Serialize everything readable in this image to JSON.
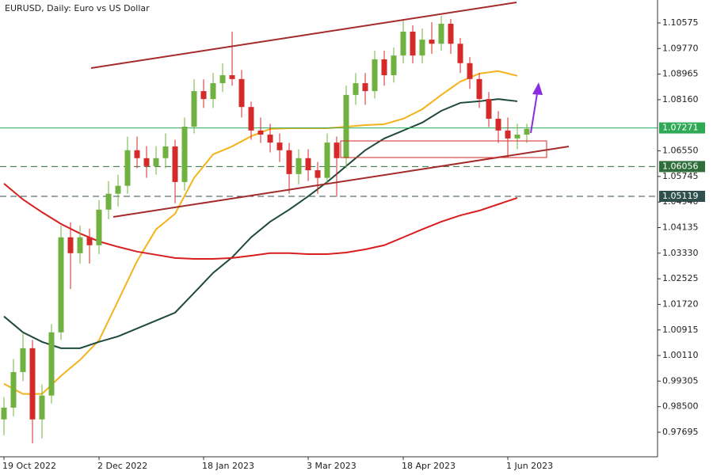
{
  "chart_data": {
    "type": "candlestick",
    "title": "EURUSD, Daily:  Euro vs US Dollar",
    "categories": [
      "19 Oct 2022",
      null,
      null,
      null,
      null,
      null,
      null,
      null,
      null,
      null,
      "2 Dec 2022",
      null,
      null,
      null,
      null,
      null,
      null,
      null,
      null,
      null,
      null,
      "18 Jan 2023",
      null,
      null,
      null,
      null,
      null,
      null,
      null,
      null,
      null,
      null,
      "3 Mar 2023",
      null,
      null,
      null,
      null,
      null,
      null,
      null,
      null,
      null,
      "18 Apr 2023",
      null,
      null,
      null,
      null,
      null,
      null,
      null,
      null,
      null,
      null,
      "1 Jun 2023",
      null,
      null
    ],
    "candles": [
      [
        0.981,
        0.988,
        0.976,
        0.9847
      ],
      [
        0.9847,
        1.0,
        0.982,
        0.9959
      ],
      [
        0.9959,
        1.008,
        0.993,
        1.0034
      ],
      [
        1.0034,
        1.006,
        0.9735,
        0.981
      ],
      [
        0.981,
        0.992,
        0.975,
        0.9885
      ],
      [
        0.9885,
        1.011,
        0.986,
        1.0084
      ],
      [
        1.0084,
        1.042,
        1.006,
        1.0383
      ],
      [
        1.0383,
        1.043,
        1.022,
        1.0333
      ],
      [
        1.0333,
        1.042,
        1.03,
        1.0383
      ],
      [
        1.0383,
        1.041,
        1.03,
        1.0358
      ],
      [
        1.0358,
        1.05,
        1.033,
        1.047
      ],
      [
        1.047,
        1.056,
        1.044,
        1.052
      ],
      [
        1.052,
        1.058,
        1.048,
        1.0545
      ],
      [
        1.0545,
        1.07,
        1.052,
        1.0657
      ],
      [
        1.0657,
        1.07,
        1.06,
        1.0632
      ],
      [
        1.0632,
        1.067,
        1.057,
        1.0607
      ],
      [
        1.0607,
        1.067,
        1.058,
        1.0632
      ],
      [
        1.0632,
        1.071,
        1.06,
        1.0669
      ],
      [
        1.0669,
        1.069,
        1.049,
        1.0557
      ],
      [
        1.0557,
        1.076,
        1.053,
        1.0731
      ],
      [
        1.0731,
        1.088,
        1.071,
        1.0843
      ],
      [
        1.0843,
        1.088,
        1.079,
        1.0818
      ],
      [
        1.0818,
        1.09,
        1.079,
        1.0868
      ],
      [
        1.0868,
        1.093,
        1.084,
        1.0893
      ],
      [
        1.0893,
        1.103,
        1.086,
        1.0881
      ],
      [
        1.0881,
        1.091,
        1.076,
        1.0793
      ],
      [
        1.0793,
        1.081,
        1.069,
        1.0719
      ],
      [
        1.0719,
        1.076,
        1.068,
        1.0706
      ],
      [
        1.0706,
        1.074,
        1.065,
        1.0681
      ],
      [
        1.0681,
        1.071,
        1.062,
        1.0657
      ],
      [
        1.0657,
        1.068,
        1.052,
        1.0582
      ],
      [
        1.0582,
        1.066,
        1.055,
        1.0632
      ],
      [
        1.0632,
        1.066,
        1.056,
        1.0594
      ],
      [
        1.0594,
        1.062,
        1.052,
        1.057
      ],
      [
        1.057,
        1.071,
        1.055,
        1.0681
      ],
      [
        1.0681,
        1.07,
        1.051,
        1.0632
      ],
      [
        1.0632,
        1.086,
        1.06,
        1.0831
      ],
      [
        1.0831,
        1.09,
        1.08,
        1.0868
      ],
      [
        1.0868,
        1.09,
        1.08,
        1.0843
      ],
      [
        1.0843,
        1.097,
        1.082,
        1.0943
      ],
      [
        1.0943,
        1.097,
        1.086,
        1.0893
      ],
      [
        1.0893,
        1.098,
        1.087,
        1.0955
      ],
      [
        1.0955,
        1.107,
        1.093,
        1.103
      ],
      [
        1.103,
        1.105,
        1.093,
        1.0955
      ],
      [
        1.0955,
        1.104,
        1.093,
        1.1005
      ],
      [
        1.1005,
        1.106,
        1.096,
        1.0992
      ],
      [
        1.0992,
        1.108,
        1.097,
        1.1055
      ],
      [
        1.1055,
        1.107,
        1.096,
        1.0992
      ],
      [
        1.0992,
        1.101,
        1.09,
        1.0931
      ],
      [
        1.0931,
        1.095,
        1.085,
        1.0881
      ],
      [
        1.0881,
        1.09,
        1.079,
        1.0818
      ],
      [
        1.0818,
        1.084,
        1.073,
        1.0756
      ],
      [
        1.0756,
        1.078,
        1.068,
        1.0719
      ],
      [
        1.0719,
        1.076,
        1.0635,
        1.0694
      ],
      [
        1.0694,
        1.074,
        1.066,
        1.0706
      ],
      [
        1.0706,
        1.074,
        1.068,
        1.0724
      ]
    ],
    "up_color": "#6fb23f",
    "down_color": "#d42a2a",
    "indicators": [
      {
        "color": "#f5b31b",
        "x": [
          0,
          2,
          4,
          6,
          8,
          10,
          12,
          14,
          16,
          18,
          20,
          22,
          24,
          26,
          28,
          30,
          32,
          34,
          36,
          38,
          40,
          42,
          44,
          46,
          48,
          50,
          52,
          54
        ],
        "values": [
          0.9922,
          0.989,
          0.989,
          0.9947,
          0.9997,
          1.0059,
          1.0183,
          1.0308,
          1.0408,
          1.0457,
          1.057,
          1.0644,
          1.0669,
          1.0701,
          1.0724,
          1.0726,
          1.0726,
          1.0726,
          1.0731,
          1.0736,
          1.0739,
          1.0756,
          1.0786,
          1.0831,
          1.0873,
          1.0898,
          1.0906,
          1.0891
        ]
      },
      {
        "color": "#1d4a3c",
        "x": [
          0,
          2,
          4,
          6,
          8,
          10,
          12,
          14,
          16,
          18,
          20,
          22,
          24,
          26,
          28,
          30,
          32,
          34,
          36,
          38,
          40,
          42,
          44,
          46,
          48,
          50,
          52,
          54
        ],
        "values": [
          1.0134,
          1.0084,
          1.0054,
          1.0034,
          1.0034,
          1.0054,
          1.0071,
          1.0096,
          1.0121,
          1.0146,
          1.0208,
          1.0271,
          1.032,
          1.0383,
          1.0432,
          1.047,
          1.0512,
          1.0557,
          1.0607,
          1.0657,
          1.0694,
          1.0719,
          1.0744,
          1.0781,
          1.0806,
          1.0811,
          1.0818,
          1.0811
        ]
      },
      {
        "color": "#d81e1e",
        "x": [
          0,
          2,
          4,
          6,
          8,
          10,
          12,
          14,
          16,
          18,
          20,
          22,
          24,
          26,
          28,
          30,
          32,
          34,
          36,
          38,
          40,
          42,
          44,
          46,
          48,
          50,
          52,
          54
        ],
        "values": [
          1.0552,
          1.0502,
          1.0462,
          1.0425,
          1.0395,
          1.037,
          1.0353,
          1.0338,
          1.0328,
          1.0318,
          1.0315,
          1.0315,
          1.0318,
          1.0325,
          1.0333,
          1.0333,
          1.033,
          1.033,
          1.0335,
          1.0345,
          1.0358,
          1.0383,
          1.0408,
          1.0432,
          1.0452,
          1.0467,
          1.0487,
          1.0507
        ]
      }
    ],
    "levels": [
      {
        "value": 1.07271,
        "color": "#2eaa55",
        "dashed": false,
        "label_color": "#2eaa55"
      },
      {
        "value": 1.06056,
        "color": "#2f6e3b",
        "dashed": true,
        "label_color": "#2f6e3b"
      },
      {
        "value": 1.05119,
        "color": "#2f4f4f",
        "dashed": true,
        "label_color": "#2f4f4f"
      }
    ],
    "ylim": [
      0.96923,
      1.11297
    ],
    "yticks": [
      {
        "value": 1.10575,
        "label": "1.10575"
      },
      {
        "value": 1.0977,
        "label": "1.09770"
      },
      {
        "value": 1.08965,
        "label": "1.08965"
      },
      {
        "value": 1.0816,
        "label": "1.08160"
      },
      {
        "value": 1.0655,
        "label": "1.06550"
      },
      {
        "value": 1.05745,
        "label": "1.05745"
      },
      {
        "value": 1.0494,
        "label": "1.04940"
      },
      {
        "value": 1.04135,
        "label": "1.04135"
      },
      {
        "value": 1.0333,
        "label": "1.03330"
      },
      {
        "value": 1.02525,
        "label": "1.02525"
      },
      {
        "value": 1.0172,
        "label": "1.01720"
      },
      {
        "value": 1.00915,
        "label": "1.00915"
      },
      {
        "value": 1.0011,
        "label": "1.00110"
      },
      {
        "value": 0.99305,
        "label": "0.99305"
      },
      {
        "value": 0.985,
        "label": "0.98500"
      },
      {
        "value": 0.97695,
        "label": "0.97695"
      }
    ]
  }
}
